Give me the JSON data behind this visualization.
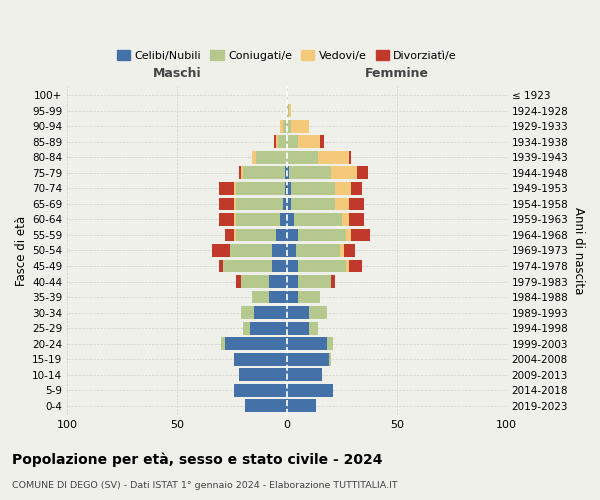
{
  "age_groups": [
    "0-4",
    "5-9",
    "10-14",
    "15-19",
    "20-24",
    "25-29",
    "30-34",
    "35-39",
    "40-44",
    "45-49",
    "50-54",
    "55-59",
    "60-64",
    "65-69",
    "70-74",
    "75-79",
    "80-84",
    "85-89",
    "90-94",
    "95-99",
    "100+"
  ],
  "birth_years": [
    "2019-2023",
    "2014-2018",
    "2009-2013",
    "2004-2008",
    "1999-2003",
    "1994-1998",
    "1989-1993",
    "1984-1988",
    "1979-1983",
    "1974-1978",
    "1969-1973",
    "1964-1968",
    "1959-1963",
    "1954-1958",
    "1949-1953",
    "1944-1948",
    "1939-1943",
    "1934-1938",
    "1929-1933",
    "1924-1928",
    "≤ 1923"
  ],
  "maschi": {
    "celibi": [
      19,
      24,
      22,
      24,
      28,
      17,
      15,
      8,
      8,
      7,
      7,
      5,
      3,
      2,
      1,
      1,
      0,
      0,
      0,
      0,
      0
    ],
    "coniugati": [
      0,
      0,
      0,
      0,
      2,
      3,
      6,
      8,
      13,
      22,
      19,
      18,
      20,
      21,
      22,
      19,
      14,
      4,
      2,
      0,
      0
    ],
    "vedovi": [
      0,
      0,
      0,
      0,
      0,
      0,
      0,
      0,
      0,
      0,
      0,
      1,
      1,
      1,
      1,
      1,
      2,
      1,
      1,
      0,
      0
    ],
    "divorziati": [
      0,
      0,
      0,
      0,
      0,
      0,
      0,
      0,
      2,
      2,
      8,
      4,
      7,
      7,
      7,
      1,
      0,
      1,
      0,
      0,
      0
    ]
  },
  "femmine": {
    "nubili": [
      13,
      21,
      16,
      19,
      18,
      10,
      10,
      5,
      5,
      5,
      4,
      5,
      3,
      2,
      2,
      1,
      0,
      0,
      0,
      0,
      0
    ],
    "coniugate": [
      0,
      0,
      0,
      1,
      3,
      4,
      8,
      10,
      15,
      22,
      20,
      22,
      22,
      20,
      20,
      19,
      14,
      5,
      2,
      1,
      0
    ],
    "vedove": [
      0,
      0,
      0,
      0,
      0,
      0,
      0,
      0,
      0,
      1,
      2,
      2,
      3,
      6,
      7,
      12,
      14,
      10,
      8,
      1,
      0
    ],
    "divorziate": [
      0,
      0,
      0,
      0,
      0,
      0,
      0,
      0,
      2,
      6,
      5,
      9,
      7,
      7,
      5,
      5,
      1,
      2,
      0,
      0,
      0
    ]
  },
  "colors": {
    "celibi": "#4472a8",
    "coniugati": "#b5c98e",
    "vedovi": "#f5c97a",
    "divorziati": "#c0392b"
  },
  "xlim": 100,
  "title": "Popolazione per età, sesso e stato civile - 2024",
  "subtitle": "COMUNE DI DEGO (SV) - Dati ISTAT 1° gennaio 2024 - Elaborazione TUTTITALIA.IT",
  "ylabel_left": "Fasce di età",
  "ylabel_right": "Anni di nascita",
  "xlabel_left": "Maschi",
  "xlabel_right": "Femmine",
  "bg_color": "#f0f0eb",
  "grid_color": "#cccccc"
}
